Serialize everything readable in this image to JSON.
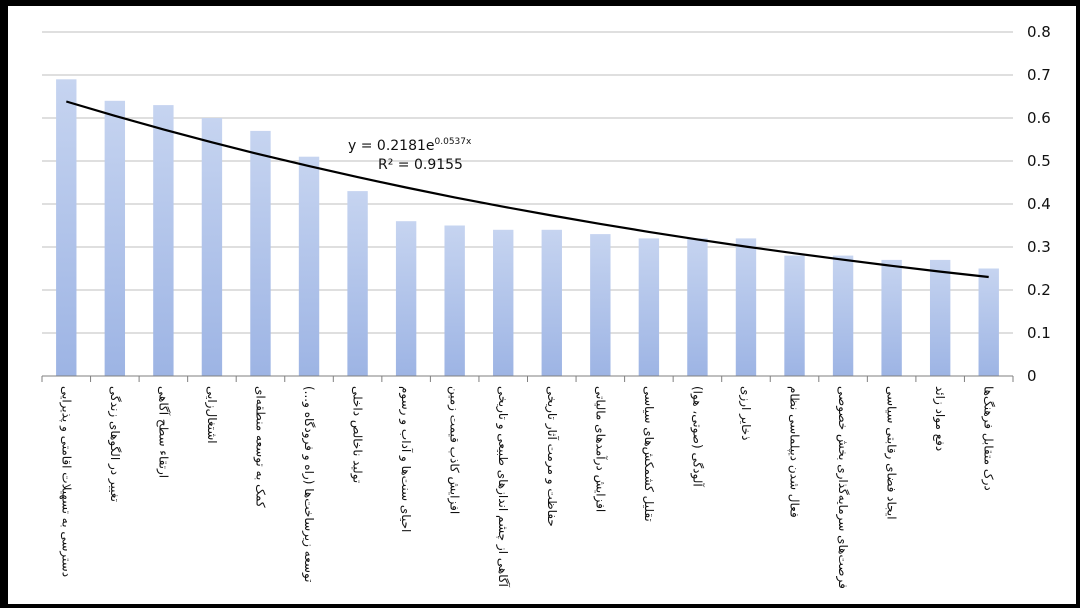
{
  "chart_data": {
    "type": "bar",
    "categories": [
      "دسترسی به تسهیلات اقامتی و پذیرایی",
      "تغییر در الگوهای زندگی",
      "ارتقاء سطح آگاهی",
      "اشتغال‌زایی",
      "کمک به توسعه منطقه‌ای",
      "توسعه زیرساخت‌ها (راه و فرودگاه و...)",
      "تولید ناخالص داخلی",
      "احیای سنت‌ها و آداب و رسوم",
      "افزایش کاذب قیمت زمین",
      "آگاهی از چشم اندازهای طبیعی و تاریخی",
      "حفاظت و مرمت آثار تاریخی",
      "افزایش درآمدهای مالیاتی",
      "تقلیل کشمکش‌های سیاسی",
      "آلودگی (صوتی، هوا)",
      "ذخایر ارزی",
      "فعال شدن دیپلماسی نظام",
      "فرصت‌های سرمایه‌گذاری بخش خصوصی",
      "ایجاد فضای رقابتی سیاسی",
      "دفع مواد زائد",
      "درک متقابل فرهنگ‌ها"
    ],
    "values": [
      0.69,
      0.64,
      0.63,
      0.6,
      0.57,
      0.51,
      0.43,
      0.36,
      0.35,
      0.34,
      0.34,
      0.33,
      0.32,
      0.32,
      0.32,
      0.28,
      0.28,
      0.27,
      0.27,
      0.25
    ],
    "yticks": [
      "0",
      "0.1",
      "0.2",
      "0.3",
      "0.4",
      "0.5",
      "0.6",
      "0.7",
      "0.8"
    ],
    "ylim": [
      0,
      0.8
    ],
    "grid": true,
    "trendline": {
      "type": "exponential",
      "a": 0.2181,
      "b": 0.0537,
      "equation": "y = 0.2181e",
      "exponent": "0.0537x",
      "r2": "R² = 0.9155"
    },
    "colors": {
      "bar_top": "#c6d4f0",
      "bar_bottom": "#9db4e4",
      "trend": "#000000",
      "grid": "#bfbfbf"
    }
  }
}
